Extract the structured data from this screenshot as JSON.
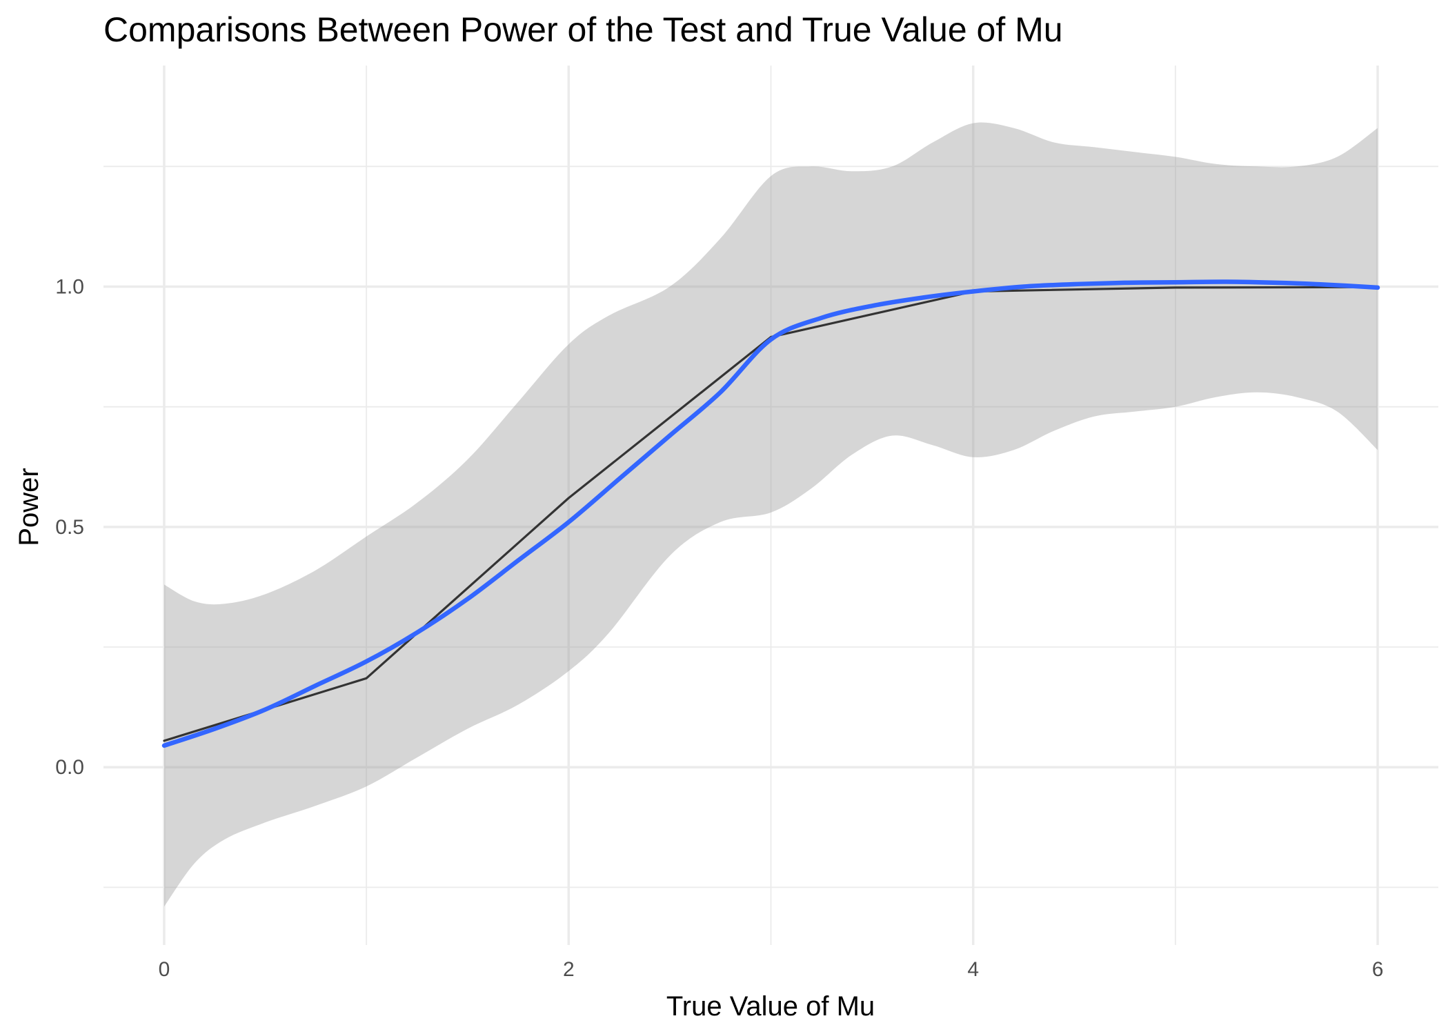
{
  "chart_data": {
    "type": "line",
    "title": "Comparisons Between Power of the Test and True Value of Mu",
    "xlabel": "True Value of Mu",
    "ylabel": "Power",
    "xlim": [
      -0.3,
      6.3
    ],
    "ylim": [
      -0.37,
      1.46
    ],
    "x_ticks": [
      0,
      2,
      4,
      6
    ],
    "x_tick_labels": [
      "0",
      "2",
      "4",
      "6"
    ],
    "y_ticks": [
      0.0,
      0.5,
      1.0
    ],
    "y_tick_labels": [
      "0.0",
      "0.5",
      "1.0"
    ],
    "grid": true,
    "legend": "none",
    "series": [
      {
        "kind": "line",
        "color": "#333333",
        "x": [
          0,
          1,
          2,
          3,
          4,
          5,
          6
        ],
        "y": [
          0.055,
          0.185,
          0.56,
          0.895,
          0.99,
          0.998,
          0.999
        ]
      },
      {
        "kind": "smooth",
        "color": "#3366ff",
        "x": [
          0,
          0.25,
          0.5,
          0.75,
          1.0,
          1.25,
          1.5,
          1.75,
          2.0,
          2.25,
          2.5,
          2.75,
          3.0,
          3.25,
          3.5,
          3.75,
          4.0,
          4.25,
          4.5,
          4.75,
          5.0,
          5.25,
          5.5,
          5.75,
          6.0
        ],
        "y": [
          0.045,
          0.08,
          0.12,
          0.17,
          0.22,
          0.28,
          0.35,
          0.43,
          0.51,
          0.6,
          0.69,
          0.78,
          0.89,
          0.935,
          0.96,
          0.977,
          0.99,
          1.0,
          1.005,
          1.008,
          1.009,
          1.01,
          1.008,
          1.004,
          0.998
        ]
      }
    ],
    "confidence_band": {
      "color": "#999999",
      "x": [
        0,
        0.15,
        0.3,
        0.5,
        0.75,
        1.0,
        1.25,
        1.5,
        1.75,
        2.0,
        2.2,
        2.5,
        2.75,
        3.0,
        3.2,
        3.4,
        3.6,
        3.8,
        4.0,
        4.2,
        4.4,
        4.6,
        4.8,
        5.0,
        5.2,
        5.4,
        5.6,
        5.8,
        6.0
      ],
      "upper": [
        0.38,
        0.345,
        0.34,
        0.36,
        0.41,
        0.48,
        0.55,
        0.64,
        0.76,
        0.88,
        0.94,
        1.0,
        1.1,
        1.23,
        1.25,
        1.24,
        1.25,
        1.3,
        1.34,
        1.33,
        1.3,
        1.29,
        1.28,
        1.27,
        1.255,
        1.25,
        1.25,
        1.27,
        1.33
      ],
      "lower": [
        -0.29,
        -0.2,
        -0.15,
        -0.115,
        -0.08,
        -0.04,
        0.02,
        0.08,
        0.13,
        0.2,
        0.28,
        0.44,
        0.51,
        0.53,
        0.58,
        0.65,
        0.69,
        0.67,
        0.645,
        0.66,
        0.7,
        0.73,
        0.74,
        0.75,
        0.77,
        0.78,
        0.77,
        0.74,
        0.66
      ]
    }
  }
}
